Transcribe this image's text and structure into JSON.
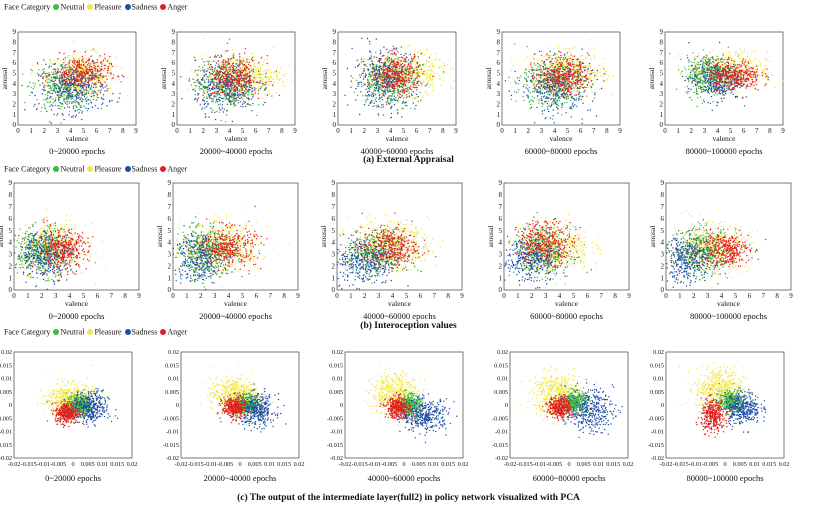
{
  "legend": {
    "title": "Face Category",
    "items": [
      {
        "label": "Neutral",
        "color": "#3fb93f"
      },
      {
        "label": "Pleasure",
        "color": "#f2e84a"
      },
      {
        "label": "Sadness",
        "color": "#1e4ea8"
      },
      {
        "label": "Anger",
        "color": "#e02020"
      }
    ]
  },
  "rows": [
    {
      "caption": "(a) External Appraisal"
    },
    {
      "caption": "(b) Interoception values"
    },
    {
      "caption": "(c) The output of the intermediate layer(full2) in policy network visualized with PCA"
    }
  ],
  "chart_data": [
    {
      "type": "scatter",
      "row": 0,
      "epochs": "0~20000 epochs",
      "xlabel": "valence",
      "ylabel": "arousal",
      "xlim": [
        0,
        9
      ],
      "ylim": [
        0,
        9
      ],
      "xticks": [
        "0",
        "1",
        "2",
        "3",
        "4",
        "5",
        "6",
        "7",
        "8",
        "9"
      ],
      "yticks": [
        "0",
        "1",
        "2",
        "3",
        "4",
        "5",
        "6",
        "7",
        "8",
        "9"
      ],
      "clusters": [
        {
          "class": "Neutral",
          "cx": 3.5,
          "cy": 3.6,
          "sx": 1.2,
          "sy": 1.2
        },
        {
          "class": "Sadness",
          "cx": 4.2,
          "cy": 3.4,
          "sx": 1.3,
          "sy": 1.1
        },
        {
          "class": "Pleasure",
          "cx": 4.8,
          "cy": 4.8,
          "sx": 1.3,
          "sy": 1.0
        },
        {
          "class": "Anger",
          "cx": 4.8,
          "cy": 5.0,
          "sx": 1.1,
          "sy": 0.8
        }
      ]
    },
    {
      "type": "scatter",
      "row": 0,
      "epochs": "20000~40000 epochs",
      "xlabel": "valence",
      "ylabel": "arousal",
      "xlim": [
        0,
        9
      ],
      "ylim": [
        0,
        9
      ],
      "xticks": [
        "0",
        "1",
        "2",
        "3",
        "4",
        "5",
        "6",
        "7",
        "8",
        "9"
      ],
      "yticks": [
        "0",
        "1",
        "2",
        "3",
        "4",
        "5",
        "6",
        "7",
        "8",
        "9"
      ],
      "clusters": [
        {
          "class": "Pleasure",
          "cx": 5.0,
          "cy": 4.8,
          "sx": 1.5,
          "sy": 1.0
        },
        {
          "class": "Neutral",
          "cx": 3.6,
          "cy": 4.0,
          "sx": 1.1,
          "sy": 1.2
        },
        {
          "class": "Sadness",
          "cx": 3.8,
          "cy": 3.6,
          "sx": 1.2,
          "sy": 1.2
        },
        {
          "class": "Anger",
          "cx": 4.3,
          "cy": 4.6,
          "sx": 1.1,
          "sy": 1.0
        }
      ]
    },
    {
      "type": "scatter",
      "row": 0,
      "epochs": "40000~60000 epochs",
      "xlabel": "valence",
      "ylabel": "arousal",
      "xlim": [
        0,
        9
      ],
      "ylim": [
        0,
        9
      ],
      "xticks": [
        "0",
        "1",
        "2",
        "3",
        "4",
        "5",
        "6",
        "7",
        "8",
        "9"
      ],
      "yticks": [
        "0",
        "1",
        "2",
        "3",
        "4",
        "5",
        "6",
        "7",
        "8",
        "9"
      ],
      "clusters": [
        {
          "class": "Pleasure",
          "cx": 5.2,
          "cy": 5.0,
          "sx": 1.5,
          "sy": 1.0
        },
        {
          "class": "Sadness",
          "cx": 3.6,
          "cy": 4.4,
          "sx": 1.2,
          "sy": 1.4
        },
        {
          "class": "Neutral",
          "cx": 3.8,
          "cy": 4.2,
          "sx": 1.1,
          "sy": 1.2
        },
        {
          "class": "Anger",
          "cx": 4.5,
          "cy": 4.8,
          "sx": 1.0,
          "sy": 1.0
        }
      ]
    },
    {
      "type": "scatter",
      "row": 0,
      "epochs": "60000~80000 epochs",
      "xlabel": "valence",
      "ylabel": "arousal",
      "xlim": [
        0,
        9
      ],
      "ylim": [
        0,
        9
      ],
      "xticks": [
        "0",
        "1",
        "2",
        "3",
        "4",
        "5",
        "6",
        "7",
        "8",
        "9"
      ],
      "yticks": [
        "0",
        "1",
        "2",
        "3",
        "4",
        "5",
        "6",
        "7",
        "8",
        "9"
      ],
      "clusters": [
        {
          "class": "Pleasure",
          "cx": 5.0,
          "cy": 5.0,
          "sx": 1.4,
          "sy": 1.0
        },
        {
          "class": "Neutral",
          "cx": 3.8,
          "cy": 4.0,
          "sx": 1.2,
          "sy": 1.2
        },
        {
          "class": "Sadness",
          "cx": 4.2,
          "cy": 3.8,
          "sx": 1.3,
          "sy": 1.3
        },
        {
          "class": "Anger",
          "cx": 4.6,
          "cy": 4.8,
          "sx": 1.0,
          "sy": 0.9
        }
      ]
    },
    {
      "type": "scatter",
      "row": 0,
      "epochs": "80000~100000 epochs",
      "xlabel": "valence",
      "ylabel": "arousal",
      "xlim": [
        0,
        9
      ],
      "ylim": [
        0,
        9
      ],
      "xticks": [
        "0",
        "1",
        "2",
        "3",
        "4",
        "5",
        "6",
        "7",
        "8",
        "9"
      ],
      "yticks": [
        "0",
        "1",
        "2",
        "3",
        "4",
        "5",
        "6",
        "7",
        "8",
        "9"
      ],
      "clusters": [
        {
          "class": "Pleasure",
          "cx": 4.8,
          "cy": 5.2,
          "sx": 1.5,
          "sy": 0.9
        },
        {
          "class": "Neutral",
          "cx": 3.4,
          "cy": 4.8,
          "sx": 0.9,
          "sy": 1.0
        },
        {
          "class": "Sadness",
          "cx": 3.8,
          "cy": 4.4,
          "sx": 1.0,
          "sy": 1.0
        },
        {
          "class": "Anger",
          "cx": 5.3,
          "cy": 4.8,
          "sx": 1.0,
          "sy": 0.7
        }
      ]
    },
    {
      "type": "scatter",
      "row": 1,
      "epochs": "0~20000 epochs",
      "xlabel": "valence",
      "ylabel": "arousal",
      "xlim": [
        0,
        9
      ],
      "ylim": [
        0,
        9
      ],
      "xticks": [
        "0",
        "1",
        "2",
        "3",
        "4",
        "5",
        "6",
        "7",
        "8",
        "9"
      ],
      "yticks": [
        "0",
        "1",
        "2",
        "3",
        "4",
        "5",
        "6",
        "7",
        "8",
        "9"
      ],
      "clusters": [
        {
          "class": "Pleasure",
          "cx": 2.8,
          "cy": 3.5,
          "sx": 1.2,
          "sy": 1.0
        },
        {
          "class": "Neutral",
          "cx": 2.0,
          "cy": 3.2,
          "sx": 0.9,
          "sy": 1.0
        },
        {
          "class": "Sadness",
          "cx": 2.2,
          "cy": 3.0,
          "sx": 1.0,
          "sy": 1.0
        },
        {
          "class": "Anger",
          "cx": 3.5,
          "cy": 3.4,
          "sx": 0.9,
          "sy": 0.8
        }
      ]
    },
    {
      "type": "scatter",
      "row": 1,
      "epochs": "20000~40000 epochs",
      "xlabel": "valence",
      "ylabel": "arousal",
      "xlim": [
        0,
        9
      ],
      "ylim": [
        0,
        9
      ],
      "xticks": [
        "0",
        "1",
        "2",
        "3",
        "4",
        "5",
        "6",
        "7",
        "8",
        "9"
      ],
      "yticks": [
        "0",
        "1",
        "2",
        "3",
        "4",
        "5",
        "6",
        "7",
        "8",
        "9"
      ],
      "clusters": [
        {
          "class": "Pleasure",
          "cx": 3.4,
          "cy": 3.6,
          "sx": 1.4,
          "sy": 1.0
        },
        {
          "class": "Sadness",
          "cx": 1.8,
          "cy": 2.8,
          "sx": 0.9,
          "sy": 1.1
        },
        {
          "class": "Neutral",
          "cx": 2.6,
          "cy": 3.2,
          "sx": 1.0,
          "sy": 1.0
        },
        {
          "class": "Anger",
          "cx": 4.0,
          "cy": 3.6,
          "sx": 1.0,
          "sy": 0.8
        }
      ]
    },
    {
      "type": "scatter",
      "row": 1,
      "epochs": "40000~60000 epochs",
      "xlabel": "valence",
      "ylabel": "arousal",
      "xlim": [
        0,
        9
      ],
      "ylim": [
        0,
        9
      ],
      "xticks": [
        "0",
        "1",
        "2",
        "3",
        "4",
        "5",
        "6",
        "7",
        "8",
        "9"
      ],
      "yticks": [
        "0",
        "1",
        "2",
        "3",
        "4",
        "5",
        "6",
        "7",
        "8",
        "9"
      ],
      "clusters": [
        {
          "class": "Pleasure",
          "cx": 3.8,
          "cy": 3.8,
          "sx": 1.4,
          "sy": 1.0
        },
        {
          "class": "Sadness",
          "cx": 2.0,
          "cy": 2.5,
          "sx": 1.1,
          "sy": 1.0
        },
        {
          "class": "Neutral",
          "cx": 2.8,
          "cy": 3.0,
          "sx": 1.0,
          "sy": 1.0
        },
        {
          "class": "Anger",
          "cx": 3.8,
          "cy": 3.6,
          "sx": 1.0,
          "sy": 0.8
        }
      ]
    },
    {
      "type": "scatter",
      "row": 1,
      "epochs": "60000~80000 epochs",
      "xlabel": "valence",
      "ylabel": "arousal",
      "xlim": [
        0,
        9
      ],
      "ylim": [
        0,
        9
      ],
      "xticks": [
        "0",
        "1",
        "2",
        "3",
        "4",
        "5",
        "6",
        "7",
        "8",
        "9"
      ],
      "yticks": [
        "0",
        "1",
        "2",
        "3",
        "4",
        "5",
        "6",
        "7",
        "8",
        "9"
      ],
      "clusters": [
        {
          "class": "Pleasure",
          "cx": 3.6,
          "cy": 3.6,
          "sx": 1.3,
          "sy": 1.0
        },
        {
          "class": "Sadness",
          "cx": 2.0,
          "cy": 2.6,
          "sx": 1.0,
          "sy": 1.0
        },
        {
          "class": "Neutral",
          "cx": 2.8,
          "cy": 3.2,
          "sx": 1.0,
          "sy": 1.0
        },
        {
          "class": "Anger",
          "cx": 3.0,
          "cy": 4.0,
          "sx": 1.0,
          "sy": 0.9
        }
      ]
    },
    {
      "type": "scatter",
      "row": 1,
      "epochs": "80000~100000 epochs",
      "xlabel": "valence",
      "ylabel": "arousal",
      "xlim": [
        0,
        9
      ],
      "ylim": [
        0,
        9
      ],
      "xticks": [
        "0",
        "1",
        "2",
        "3",
        "4",
        "5",
        "6",
        "7",
        "8",
        "9"
      ],
      "yticks": [
        "0",
        "1",
        "2",
        "3",
        "4",
        "5",
        "6",
        "7",
        "8",
        "9"
      ],
      "clusters": [
        {
          "class": "Pleasure",
          "cx": 3.2,
          "cy": 3.6,
          "sx": 1.4,
          "sy": 1.0
        },
        {
          "class": "Sadness",
          "cx": 1.6,
          "cy": 2.6,
          "sx": 0.9,
          "sy": 1.0
        },
        {
          "class": "Neutral",
          "cx": 2.6,
          "cy": 3.2,
          "sx": 1.0,
          "sy": 0.9
        },
        {
          "class": "Anger",
          "cx": 4.2,
          "cy": 3.4,
          "sx": 0.9,
          "sy": 0.7
        }
      ]
    },
    {
      "type": "scatter",
      "row": 2,
      "epochs": "0~20000 epochs",
      "xlabel": "",
      "ylabel": "",
      "xlim": [
        -0.02,
        0.02
      ],
      "ylim": [
        -0.02,
        0.02
      ],
      "xticks": [
        "-0.02",
        "-0.015",
        "-0.01",
        "-0.005",
        "0",
        "0.005",
        "0.01",
        "0.015",
        "0.02"
      ],
      "yticks": [
        "-0.02",
        "-0.015",
        "-0.01",
        "-0.005",
        "0",
        "0.005",
        "0.01",
        "0.015",
        "0.02"
      ],
      "clusters": [
        {
          "class": "Pleasure",
          "cx": -0.001,
          "cy": 0.002,
          "sx": 0.004,
          "sy": 0.003
        },
        {
          "class": "Sadness",
          "cx": 0.006,
          "cy": -0.001,
          "sx": 0.003,
          "sy": 0.003
        },
        {
          "class": "Neutral",
          "cx": 0.002,
          "cy": 0.0,
          "sx": 0.002,
          "sy": 0.002
        },
        {
          "class": "Anger",
          "cx": -0.002,
          "cy": -0.003,
          "sx": 0.002,
          "sy": 0.002
        }
      ]
    },
    {
      "type": "scatter",
      "row": 2,
      "epochs": "20000~40000 epochs",
      "xlabel": "",
      "ylabel": "",
      "xlim": [
        -0.02,
        0.02
      ],
      "ylim": [
        -0.02,
        0.02
      ],
      "xticks": [
        "-0.02",
        "-0.015",
        "-0.01",
        "-0.005",
        "0",
        "0.005",
        "0.01",
        "0.015",
        "0.02"
      ],
      "yticks": [
        "-0.02",
        "-0.015",
        "-0.01",
        "-0.005",
        "0",
        "0.005",
        "0.01",
        "0.015",
        "0.02"
      ],
      "clusters": [
        {
          "class": "Pleasure",
          "cx": -0.002,
          "cy": 0.004,
          "sx": 0.004,
          "sy": 0.003
        },
        {
          "class": "Sadness",
          "cx": 0.006,
          "cy": -0.002,
          "sx": 0.003,
          "sy": 0.003
        },
        {
          "class": "Neutral",
          "cx": 0.002,
          "cy": 0.0,
          "sx": 0.002,
          "sy": 0.002
        },
        {
          "class": "Anger",
          "cx": -0.002,
          "cy": -0.001,
          "sx": 0.002,
          "sy": 0.002
        }
      ]
    },
    {
      "type": "scatter",
      "row": 2,
      "epochs": "40000~60000 epochs",
      "xlabel": "",
      "ylabel": "",
      "xlim": [
        -0.02,
        0.02
      ],
      "ylim": [
        -0.02,
        0.02
      ],
      "xticks": [
        "-0.02",
        "-0.015",
        "-0.01",
        "-0.005",
        "0",
        "0.005",
        "0.01",
        "0.015",
        "0.02"
      ],
      "yticks": [
        "-0.02",
        "-0.015",
        "-0.01",
        "-0.005",
        "0",
        "0.005",
        "0.01",
        "0.015",
        "0.02"
      ],
      "clusters": [
        {
          "class": "Pleasure",
          "cx": -0.003,
          "cy": 0.004,
          "sx": 0.004,
          "sy": 0.004
        },
        {
          "class": "Sadness",
          "cx": 0.007,
          "cy": -0.004,
          "sx": 0.004,
          "sy": 0.003
        },
        {
          "class": "Neutral",
          "cx": 0.002,
          "cy": 0.0,
          "sx": 0.002,
          "sy": 0.002
        },
        {
          "class": "Anger",
          "cx": -0.002,
          "cy": -0.001,
          "sx": 0.002,
          "sy": 0.002
        }
      ]
    },
    {
      "type": "scatter",
      "row": 2,
      "epochs": "60000~80000 epochs",
      "xlabel": "",
      "ylabel": "",
      "xlim": [
        -0.02,
        0.02
      ],
      "ylim": [
        -0.02,
        0.02
      ],
      "xticks": [
        "-0.02",
        "-0.015",
        "-0.01",
        "-0.005",
        "0",
        "0.005",
        "0.01",
        "0.015",
        "0.02"
      ],
      "yticks": [
        "-0.02",
        "-0.015",
        "-0.01",
        "-0.005",
        "0",
        "0.005",
        "0.01",
        "0.015",
        "0.02"
      ],
      "clusters": [
        {
          "class": "Pleasure",
          "cx": -0.004,
          "cy": 0.004,
          "sx": 0.004,
          "sy": 0.004
        },
        {
          "class": "Sadness",
          "cx": 0.007,
          "cy": -0.002,
          "sx": 0.004,
          "sy": 0.004
        },
        {
          "class": "Neutral",
          "cx": 0.002,
          "cy": 0.001,
          "sx": 0.002,
          "sy": 0.002
        },
        {
          "class": "Anger",
          "cx": -0.003,
          "cy": -0.001,
          "sx": 0.002,
          "sy": 0.002
        }
      ]
    },
    {
      "type": "scatter",
      "row": 2,
      "epochs": "80000~100000 epochs",
      "xlabel": "",
      "ylabel": "",
      "xlim": [
        -0.02,
        0.02
      ],
      "ylim": [
        -0.02,
        0.02
      ],
      "xticks": [
        "-0.02",
        "-0.015",
        "-0.01",
        "-0.005",
        "0",
        "0.005",
        "0.01",
        "0.015",
        "0.02"
      ],
      "yticks": [
        "-0.02",
        "-0.015",
        "-0.01",
        "-0.005",
        "0",
        "0.005",
        "0.01",
        "0.015",
        "0.02"
      ],
      "clusters": [
        {
          "class": "Pleasure",
          "cx": -0.002,
          "cy": 0.006,
          "sx": 0.004,
          "sy": 0.004
        },
        {
          "class": "Sadness",
          "cx": 0.006,
          "cy": -0.001,
          "sx": 0.003,
          "sy": 0.003
        },
        {
          "class": "Neutral",
          "cx": 0.002,
          "cy": 0.001,
          "sx": 0.002,
          "sy": 0.002
        },
        {
          "class": "Anger",
          "cx": -0.004,
          "cy": -0.004,
          "sx": 0.002,
          "sy": 0.003
        }
      ]
    }
  ]
}
